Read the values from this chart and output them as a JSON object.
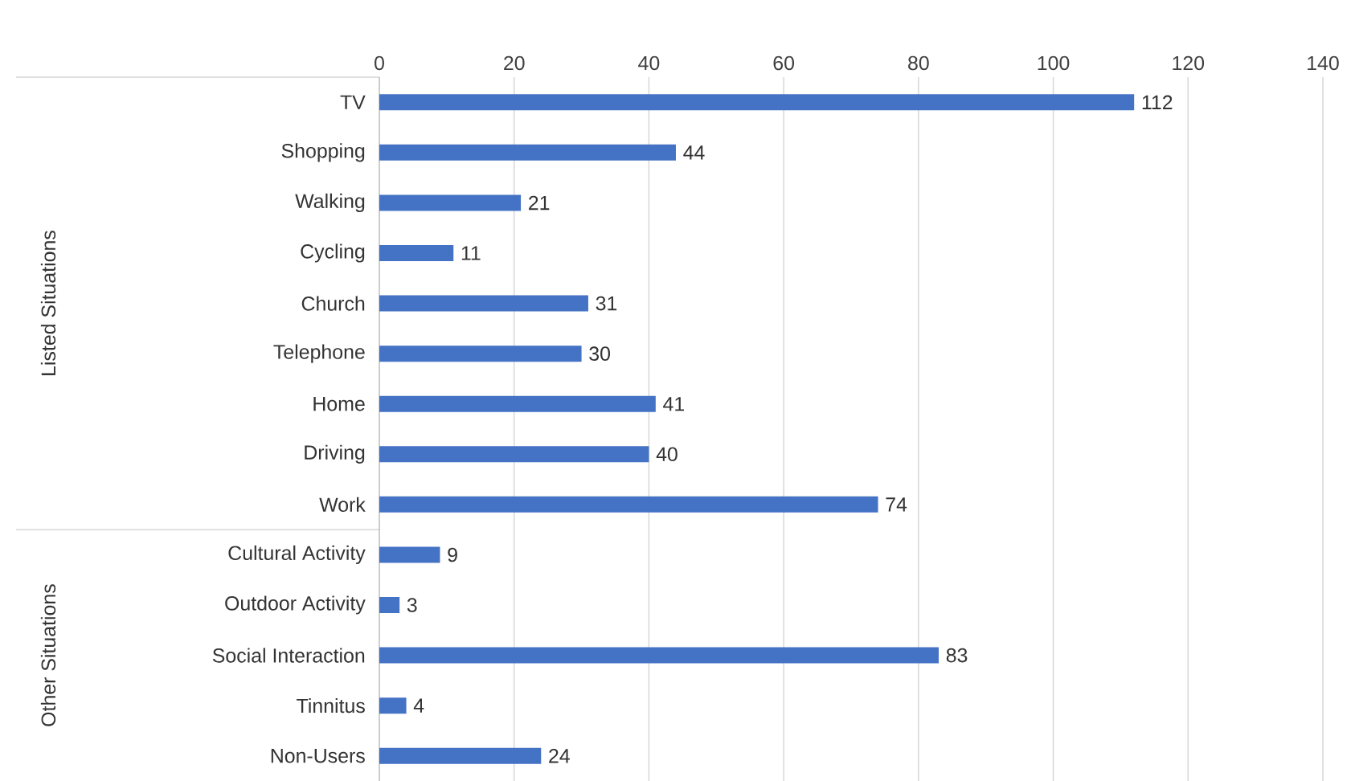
{
  "chart_data": {
    "type": "bar",
    "orientation": "horizontal",
    "categories": [
      "TV",
      "Shopping",
      "Walking",
      "Cycling",
      "Church",
      "Telephone",
      "Home",
      "Driving",
      "Work",
      "Cultural Activity",
      "Outdoor Activity",
      "Social Interaction",
      "Tinnitus",
      "Non-Users"
    ],
    "values": [
      112,
      44,
      21,
      11,
      31,
      30,
      41,
      40,
      74,
      9,
      3,
      83,
      4,
      24
    ],
    "color": "#4472c4",
    "xlim": [
      0,
      140
    ],
    "xticks": [
      0,
      20,
      40,
      60,
      80,
      100,
      120,
      140
    ],
    "grid": "x",
    "data_labels": true,
    "annotations": [
      "Listed Situations",
      "Other Situations"
    ]
  }
}
